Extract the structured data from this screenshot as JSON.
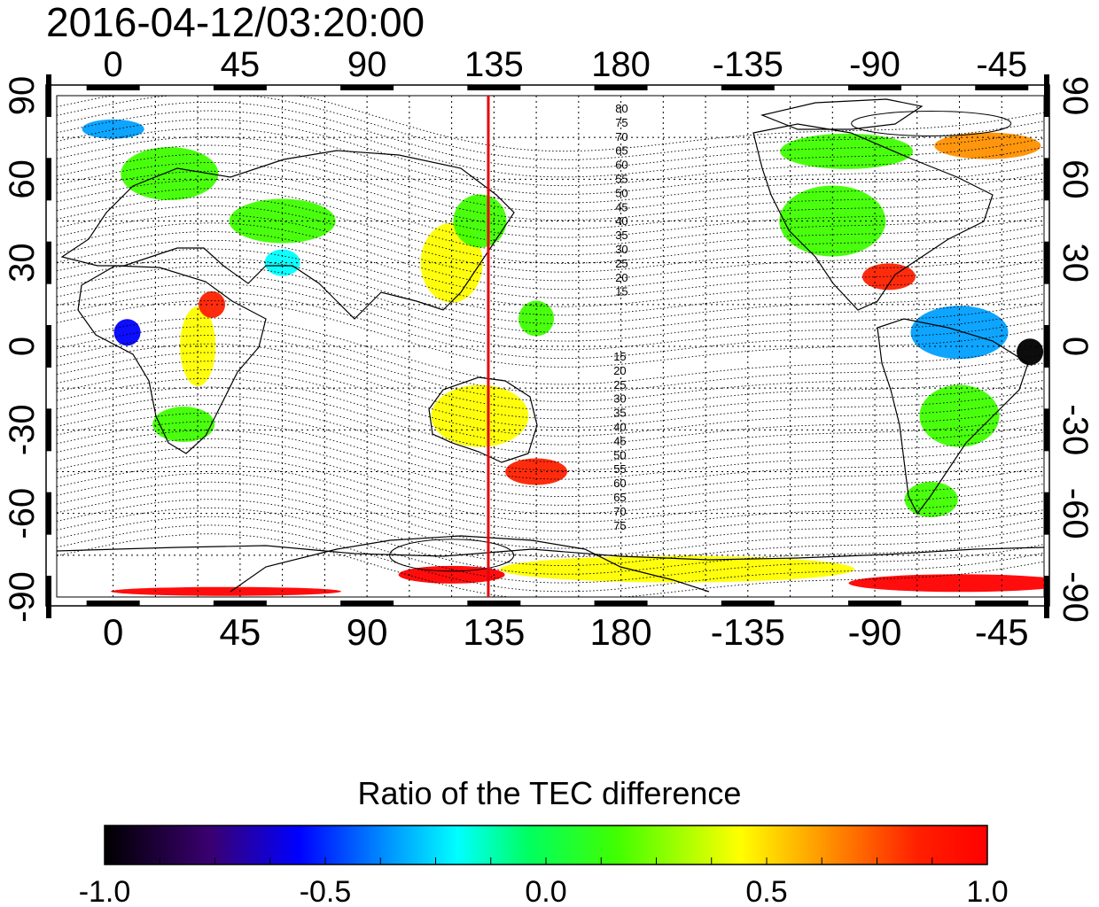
{
  "title": "2016-04-12/03:20:00",
  "map": {
    "x_ticks_top": [
      "0",
      "45",
      "90",
      "135",
      "180",
      "-135",
      "-90",
      "-45"
    ],
    "x_ticks_bottom": [
      "0",
      "45",
      "90",
      "135",
      "180",
      "-135",
      "-90",
      "-45"
    ],
    "y_ticks_left": [
      "90",
      "60",
      "30",
      "0",
      "-30",
      "-60",
      "-90"
    ],
    "y_ticks_right": [
      "90",
      "60",
      "30",
      "0",
      "-30",
      "-60",
      "-90"
    ],
    "lat_range": [
      -90,
      90
    ],
    "lon_range": [
      -20,
      330
    ],
    "grid": true,
    "meridian_marker_lon": 133,
    "meridian_marker_color": "#e8000b",
    "contour_labels_north": [
      "80",
      "75",
      "70",
      "65",
      "60",
      "55",
      "50",
      "45",
      "40",
      "35",
      "30",
      "25",
      "20",
      "15"
    ],
    "contour_labels_south": [
      "15",
      "20",
      "25",
      "30",
      "35",
      "40",
      "45",
      "50",
      "55",
      "60",
      "65",
      "70",
      "75"
    ]
  },
  "colorbar": {
    "title": "Ratio of the TEC difference",
    "tick_labels": [
      "-1.0",
      "-0.5",
      "0.0",
      "0.5",
      "1.0"
    ],
    "range": [
      -1.0,
      1.0
    ],
    "colors": [
      "#000000",
      "#3a0070",
      "#0000ff",
      "#00a0ff",
      "#00ffff",
      "#00ff60",
      "#40ff00",
      "#ffff00",
      "#ff9000",
      "#ff2000",
      "#ff0000"
    ]
  }
}
